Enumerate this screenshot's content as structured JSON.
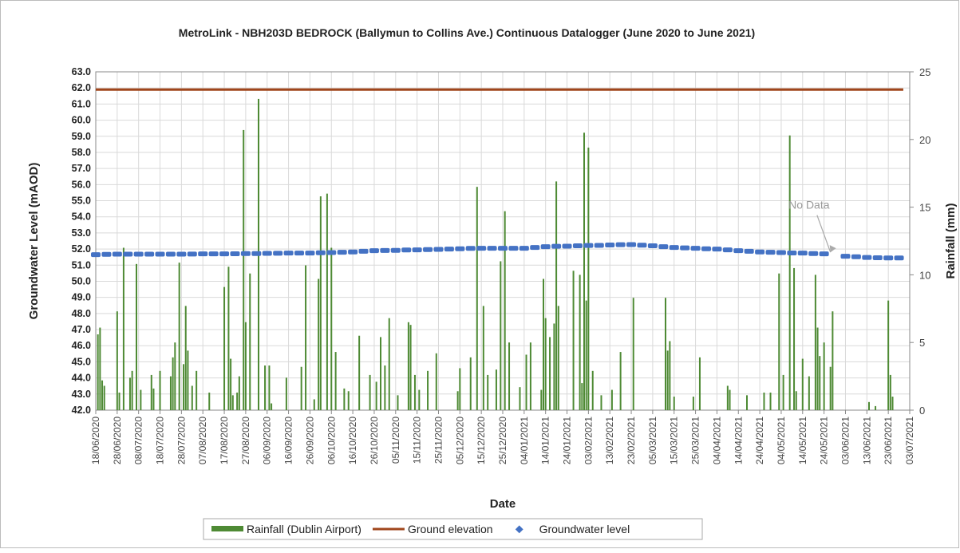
{
  "chart_data": {
    "type": "combo",
    "title": "MetroLink - NBH203D  BEDROCK  (Ballymun to Collins Ave.) Continuous  Datalogger (June 2020  to June 2021)",
    "x_label": "Date",
    "y_label": "Groundwater Level (mAOD)",
    "y2_label": "Rainfall (mm)",
    "grid": true,
    "legend": "bottom",
    "xlim": [
      "18/06/2020",
      "03/07/2021"
    ],
    "xticks": [
      "18/06/2020",
      "28/06/2020",
      "08/07/2020",
      "18/07/2020",
      "28/07/2020",
      "07/08/2020",
      "17/08/2020",
      "27/08/2020",
      "06/09/2020",
      "16/09/2020",
      "26/09/2020",
      "06/10/2020",
      "16/10/2020",
      "26/10/2020",
      "05/11/2020",
      "15/11/2020",
      "25/11/2020",
      "05/12/2020",
      "15/12/2020",
      "25/12/2020",
      "04/01/2021",
      "14/01/2021",
      "24/01/2021",
      "03/02/2021",
      "13/02/2021",
      "23/02/2021",
      "05/03/2021",
      "15/03/2021",
      "25/03/2021",
      "04/04/2021",
      "14/04/2021",
      "24/04/2021",
      "04/05/2021",
      "14/05/2021",
      "24/05/2021",
      "03/06/2021",
      "13/06/2021",
      "23/06/2021",
      "03/07/2021"
    ],
    "ylim": [
      42,
      63
    ],
    "yticks": [
      {
        "value": 42,
        "label": "42.0"
      },
      {
        "value": 43,
        "label": "43.0"
      },
      {
        "value": 44,
        "label": "44.0"
      },
      {
        "value": 45,
        "label": "45.0"
      },
      {
        "value": 46,
        "label": "46.0"
      },
      {
        "value": 47,
        "label": "47.0"
      },
      {
        "value": 48,
        "label": "48.0"
      },
      {
        "value": 49,
        "label": "49.0"
      },
      {
        "value": 50,
        "label": "50.0"
      },
      {
        "value": 51,
        "label": "51.0"
      },
      {
        "value": 52,
        "label": "52.0"
      },
      {
        "value": 53,
        "label": "53.0"
      },
      {
        "value": 54,
        "label": "54.0"
      },
      {
        "value": 55,
        "label": "55.0"
      },
      {
        "value": 56,
        "label": "56.0"
      },
      {
        "value": 57,
        "label": "57.0"
      },
      {
        "value": 58,
        "label": "58.0"
      },
      {
        "value": 59,
        "label": "59.0"
      },
      {
        "value": 60,
        "label": "60.0"
      },
      {
        "value": 61,
        "label": "61.0"
      },
      {
        "value": 62,
        "label": "62.0"
      },
      {
        "value": 63,
        "label": "63.0"
      }
    ],
    "y2lim": [
      0,
      25
    ],
    "y2ticks": [
      0,
      5,
      10,
      15,
      20,
      25
    ],
    "annotations": [
      {
        "text": "No Data",
        "x": "17/05/2021",
        "y": 54.5,
        "arrow_x": "27/05/2021",
        "arrow_y": 51.8
      }
    ],
    "series": [
      {
        "name": "Rainfall (Dublin Airport)",
        "type": "bar",
        "axis": "y2",
        "color": "#4e8a34",
        "x": [
          "19/06/2020",
          "20/06/2020",
          "21/06/2020",
          "22/06/2020",
          "28/06/2020",
          "29/06/2020",
          "01/07/2020",
          "04/07/2020",
          "05/07/2020",
          "07/07/2020",
          "09/07/2020",
          "14/07/2020",
          "15/07/2020",
          "18/07/2020",
          "23/07/2020",
          "24/07/2020",
          "25/07/2020",
          "27/07/2020",
          "29/07/2020",
          "30/07/2020",
          "31/07/2020",
          "02/08/2020",
          "04/08/2020",
          "10/08/2020",
          "17/08/2020",
          "19/08/2020",
          "20/08/2020",
          "21/08/2020",
          "23/08/2020",
          "24/08/2020",
          "26/08/2020",
          "27/08/2020",
          "29/08/2020",
          "02/09/2020",
          "05/09/2020",
          "07/09/2020",
          "08/09/2020",
          "15/09/2020",
          "22/09/2020",
          "24/09/2020",
          "28/09/2020",
          "30/09/2020",
          "01/10/2020",
          "04/10/2020",
          "06/10/2020",
          "08/10/2020",
          "12/10/2020",
          "14/10/2020",
          "19/10/2020",
          "24/10/2020",
          "27/10/2020",
          "29/10/2020",
          "31/10/2020",
          "02/11/2020",
          "06/11/2020",
          "11/11/2020",
          "12/11/2020",
          "14/11/2020",
          "16/11/2020",
          "20/11/2020",
          "24/11/2020",
          "04/12/2020",
          "05/12/2020",
          "10/12/2020",
          "13/12/2020",
          "16/12/2020",
          "18/12/2020",
          "22/12/2020",
          "24/12/2020",
          "26/12/2020",
          "28/12/2020",
          "02/01/2021",
          "05/01/2021",
          "07/01/2021",
          "12/01/2021",
          "13/01/2021",
          "14/01/2021",
          "16/01/2021",
          "18/01/2021",
          "19/01/2021",
          "20/01/2021",
          "27/01/2021",
          "30/01/2021",
          "31/01/2021",
          "01/02/2021",
          "02/02/2021",
          "03/02/2021",
          "05/02/2021",
          "09/02/2021",
          "14/02/2021",
          "18/02/2021",
          "24/02/2021",
          "11/03/2021",
          "12/03/2021",
          "13/03/2021",
          "15/03/2021",
          "24/03/2021",
          "27/03/2021",
          "09/04/2021",
          "10/04/2021",
          "18/04/2021",
          "26/04/2021",
          "29/04/2021",
          "03/05/2021",
          "05/05/2021",
          "08/05/2021",
          "10/05/2021",
          "11/05/2021",
          "14/05/2021",
          "17/05/2021",
          "20/05/2021",
          "21/05/2021",
          "22/05/2021",
          "24/05/2021",
          "27/05/2021",
          "28/05/2021",
          "14/06/2021",
          "17/06/2021",
          "23/06/2021",
          "24/06/2021",
          "25/06/2021"
        ],
        "values": [
          5.6,
          6.1,
          2.2,
          1.8,
          7.3,
          1.3,
          12.0,
          2.4,
          2.9,
          10.8,
          1.5,
          2.6,
          1.6,
          2.9,
          2.5,
          3.9,
          5.0,
          10.9,
          3.4,
          7.7,
          4.4,
          1.8,
          2.9,
          1.3,
          9.1,
          10.6,
          3.8,
          1.1,
          1.3,
          2.5,
          20.7,
          6.5,
          10.1,
          23.0,
          3.3,
          3.3,
          0.5,
          2.4,
          3.2,
          10.7,
          0.8,
          9.7,
          15.8,
          16.0,
          12.0,
          4.3,
          1.6,
          1.4,
          5.5,
          2.6,
          2.1,
          5.4,
          3.3,
          6.8,
          1.1,
          6.5,
          6.3,
          2.6,
          1.5,
          2.9,
          4.2,
          1.4,
          3.1,
          3.9,
          16.5,
          7.7,
          2.6,
          3.0,
          11.0,
          14.7,
          5.0,
          1.7,
          4.1,
          5.0,
          1.5,
          9.7,
          6.8,
          5.4,
          6.4,
          16.9,
          7.7,
          10.3,
          10.0,
          2.0,
          20.5,
          8.1,
          19.4,
          2.9,
          1.1,
          1.5,
          4.3,
          8.3,
          8.3,
          4.4,
          5.1,
          1.0,
          1.0,
          3.9,
          1.8,
          1.5,
          1.1,
          1.3,
          1.3,
          10.1,
          2.6,
          20.3,
          10.5,
          1.4,
          3.8,
          2.5,
          10.0,
          6.1,
          4.0,
          5.0,
          3.2,
          7.3,
          0.6,
          0.3,
          8.1,
          2.6,
          1.0
        ]
      },
      {
        "name": "Ground elevation",
        "type": "line",
        "color": "#a0461c",
        "x": [
          "18/06/2020",
          "30/06/2021"
        ],
        "values": [
          61.9,
          61.9
        ]
      },
      {
        "name": "Groundwater level",
        "type": "scatter",
        "color": "#4472c4",
        "x": [
          "18/06/2020",
          "23/06/2020",
          "28/06/2020",
          "03/07/2020",
          "08/07/2020",
          "13/07/2020",
          "18/07/2020",
          "23/07/2020",
          "28/07/2020",
          "02/08/2020",
          "07/08/2020",
          "12/08/2020",
          "17/08/2020",
          "22/08/2020",
          "27/08/2020",
          "01/09/2020",
          "06/09/2020",
          "11/09/2020",
          "16/09/2020",
          "21/09/2020",
          "26/09/2020",
          "01/10/2020",
          "06/10/2020",
          "11/10/2020",
          "16/10/2020",
          "21/10/2020",
          "26/10/2020",
          "31/10/2020",
          "05/11/2020",
          "10/11/2020",
          "15/11/2020",
          "20/11/2020",
          "25/11/2020",
          "30/11/2020",
          "05/12/2020",
          "10/12/2020",
          "15/12/2020",
          "20/12/2020",
          "25/12/2020",
          "30/12/2020",
          "04/01/2021",
          "09/01/2021",
          "14/01/2021",
          "19/01/2021",
          "24/01/2021",
          "29/01/2021",
          "03/02/2021",
          "08/02/2021",
          "13/02/2021",
          "18/02/2021",
          "23/02/2021",
          "28/02/2021",
          "05/03/2021",
          "10/03/2021",
          "15/03/2021",
          "20/03/2021",
          "25/03/2021",
          "30/03/2021",
          "04/04/2021",
          "09/04/2021",
          "14/04/2021",
          "19/04/2021",
          "24/04/2021",
          "29/04/2021",
          "04/05/2021",
          "09/05/2021",
          "14/05/2021",
          "19/05/2021",
          "24/05/2021",
          "03/06/2021",
          "08/06/2021",
          "13/06/2021",
          "18/06/2021",
          "23/06/2021",
          "28/06/2021"
        ],
        "values": [
          51.65,
          51.67,
          51.68,
          51.68,
          51.68,
          51.68,
          51.68,
          51.68,
          51.68,
          51.69,
          51.7,
          51.7,
          51.7,
          51.71,
          51.72,
          51.72,
          51.73,
          51.74,
          51.75,
          51.75,
          51.75,
          51.77,
          51.78,
          51.8,
          51.82,
          51.86,
          51.9,
          51.91,
          51.92,
          51.94,
          51.95,
          51.97,
          51.98,
          52.0,
          52.02,
          52.04,
          52.05,
          52.05,
          52.05,
          52.05,
          52.05,
          52.1,
          52.15,
          52.17,
          52.18,
          52.2,
          52.22,
          52.23,
          52.25,
          52.27,
          52.28,
          52.24,
          52.2,
          52.15,
          52.1,
          52.07,
          52.05,
          52.02,
          52.0,
          51.95,
          51.9,
          51.86,
          51.82,
          51.8,
          51.78,
          51.76,
          51.75,
          51.72,
          51.7,
          51.55,
          51.52,
          51.48,
          51.46,
          51.45,
          51.45
        ]
      }
    ]
  }
}
